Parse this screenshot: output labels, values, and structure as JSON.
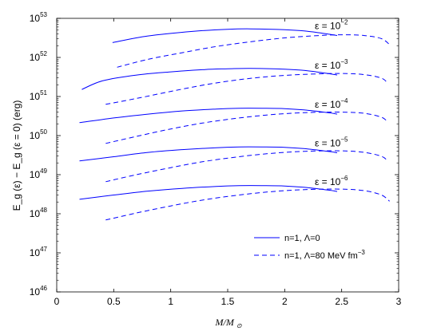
{
  "chart_data": {
    "type": "line",
    "ylabel": "E_g (ε) − E_g (ε = 0) (erg)",
    "xlabel": "M/M_⊙",
    "xlim": [
      0,
      3
    ],
    "ylim_exp": [
      46,
      53
    ],
    "yscale": "log",
    "x_ticks": [
      "0",
      "0.5",
      "1",
      "1.5",
      "2",
      "2.5",
      "3"
    ],
    "y_ticks": [
      {
        "base": "10",
        "exp": "46"
      },
      {
        "base": "10",
        "exp": "47"
      },
      {
        "base": "10",
        "exp": "48"
      },
      {
        "base": "10",
        "exp": "49"
      },
      {
        "base": "10",
        "exp": "50"
      },
      {
        "base": "10",
        "exp": "51"
      },
      {
        "base": "10",
        "exp": "52"
      },
      {
        "base": "10",
        "exp": "53"
      }
    ],
    "grid": false,
    "legend_position": "bottom-right",
    "series": [
      {
        "name": "n=1, Λ=0",
        "style": "solid",
        "color": "#0000ff",
        "groups": [
          {
            "label": "ε = 10",
            "label_exp": "−2",
            "x": [
              0.49,
              0.8,
              1.2,
              1.5,
              1.7,
              2.0,
              2.2,
              2.4,
              2.46
            ],
            "log10y": [
              52.38,
              52.55,
              52.67,
              52.72,
              52.73,
              52.71,
              52.67,
              52.59,
              52.56
            ]
          },
          {
            "label": "ε = 10",
            "label_exp": "−3",
            "x": [
              0.22,
              0.4,
              0.7,
              1.0,
              1.3,
              1.5,
              1.7,
              2.0,
              2.2,
              2.4,
              2.46
            ],
            "log10y": [
              51.18,
              51.4,
              51.55,
              51.63,
              51.69,
              51.71,
              51.72,
              51.7,
              51.66,
              51.58,
              51.55
            ]
          },
          {
            "label": "ε = 10",
            "label_exp": "−4",
            "x": [
              0.2,
              0.5,
              0.8,
              1.1,
              1.4,
              1.6,
              1.8,
              2.0,
              2.2,
              2.4,
              2.46
            ],
            "log10y": [
              50.33,
              50.45,
              50.55,
              50.63,
              50.68,
              50.7,
              50.7,
              50.69,
              50.65,
              50.58,
              50.55
            ]
          },
          {
            "label": "ε = 10",
            "label_exp": "−5",
            "x": [
              0.2,
              0.5,
              0.8,
              1.1,
              1.4,
              1.6,
              1.8,
              2.0,
              2.2,
              2.4,
              2.46
            ],
            "log10y": [
              49.35,
              49.46,
              49.57,
              49.64,
              49.69,
              49.71,
              49.71,
              49.7,
              49.66,
              49.59,
              49.56
            ]
          },
          {
            "label": "ε = 10",
            "label_exp": "−6",
            "x": [
              0.2,
              0.5,
              0.8,
              1.1,
              1.4,
              1.6,
              1.8,
              2.0,
              2.2,
              2.4,
              2.46
            ],
            "log10y": [
              48.37,
              48.48,
              48.58,
              48.65,
              48.7,
              48.72,
              48.72,
              48.71,
              48.67,
              48.6,
              48.57
            ]
          }
        ]
      },
      {
        "name": "n=1, Λ=80 MeV fm",
        "name_exp": "−3",
        "style": "dashed",
        "color": "#0000ff",
        "groups": [
          {
            "x": [
              0.53,
              0.8,
              1.1,
              1.4,
              1.7,
              2.0,
              2.3,
              2.5,
              2.7,
              2.85,
              2.93
            ],
            "log10y": [
              51.75,
              51.95,
              52.12,
              52.28,
              52.4,
              52.5,
              52.56,
              52.58,
              52.56,
              52.48,
              52.3
            ]
          },
          {
            "x": [
              0.43,
              0.7,
              1.0,
              1.3,
              1.6,
              1.9,
              2.2,
              2.5,
              2.7,
              2.85,
              2.9
            ],
            "log10y": [
              50.8,
              50.95,
              51.13,
              51.3,
              51.43,
              51.52,
              51.57,
              51.59,
              51.56,
              51.47,
              51.35
            ]
          },
          {
            "x": [
              0.43,
              0.7,
              1.0,
              1.3,
              1.6,
              1.9,
              2.2,
              2.5,
              2.7,
              2.85,
              2.9
            ],
            "log10y": [
              49.8,
              49.98,
              50.17,
              50.33,
              50.45,
              50.54,
              50.59,
              50.6,
              50.57,
              50.47,
              50.36
            ]
          },
          {
            "x": [
              0.43,
              0.7,
              1.0,
              1.3,
              1.6,
              1.9,
              2.2,
              2.5,
              2.7,
              2.85,
              2.9
            ],
            "log10y": [
              48.82,
              49.0,
              49.18,
              49.34,
              49.46,
              49.55,
              49.6,
              49.61,
              49.57,
              49.47,
              49.36
            ]
          },
          {
            "x": [
              0.43,
              0.7,
              1.0,
              1.3,
              1.6,
              1.9,
              2.2,
              2.5,
              2.7,
              2.85,
              2.92
            ],
            "log10y": [
              47.84,
              48.02,
              48.2,
              48.36,
              48.48,
              48.57,
              48.62,
              48.63,
              48.59,
              48.48,
              48.32
            ]
          }
        ]
      }
    ]
  }
}
